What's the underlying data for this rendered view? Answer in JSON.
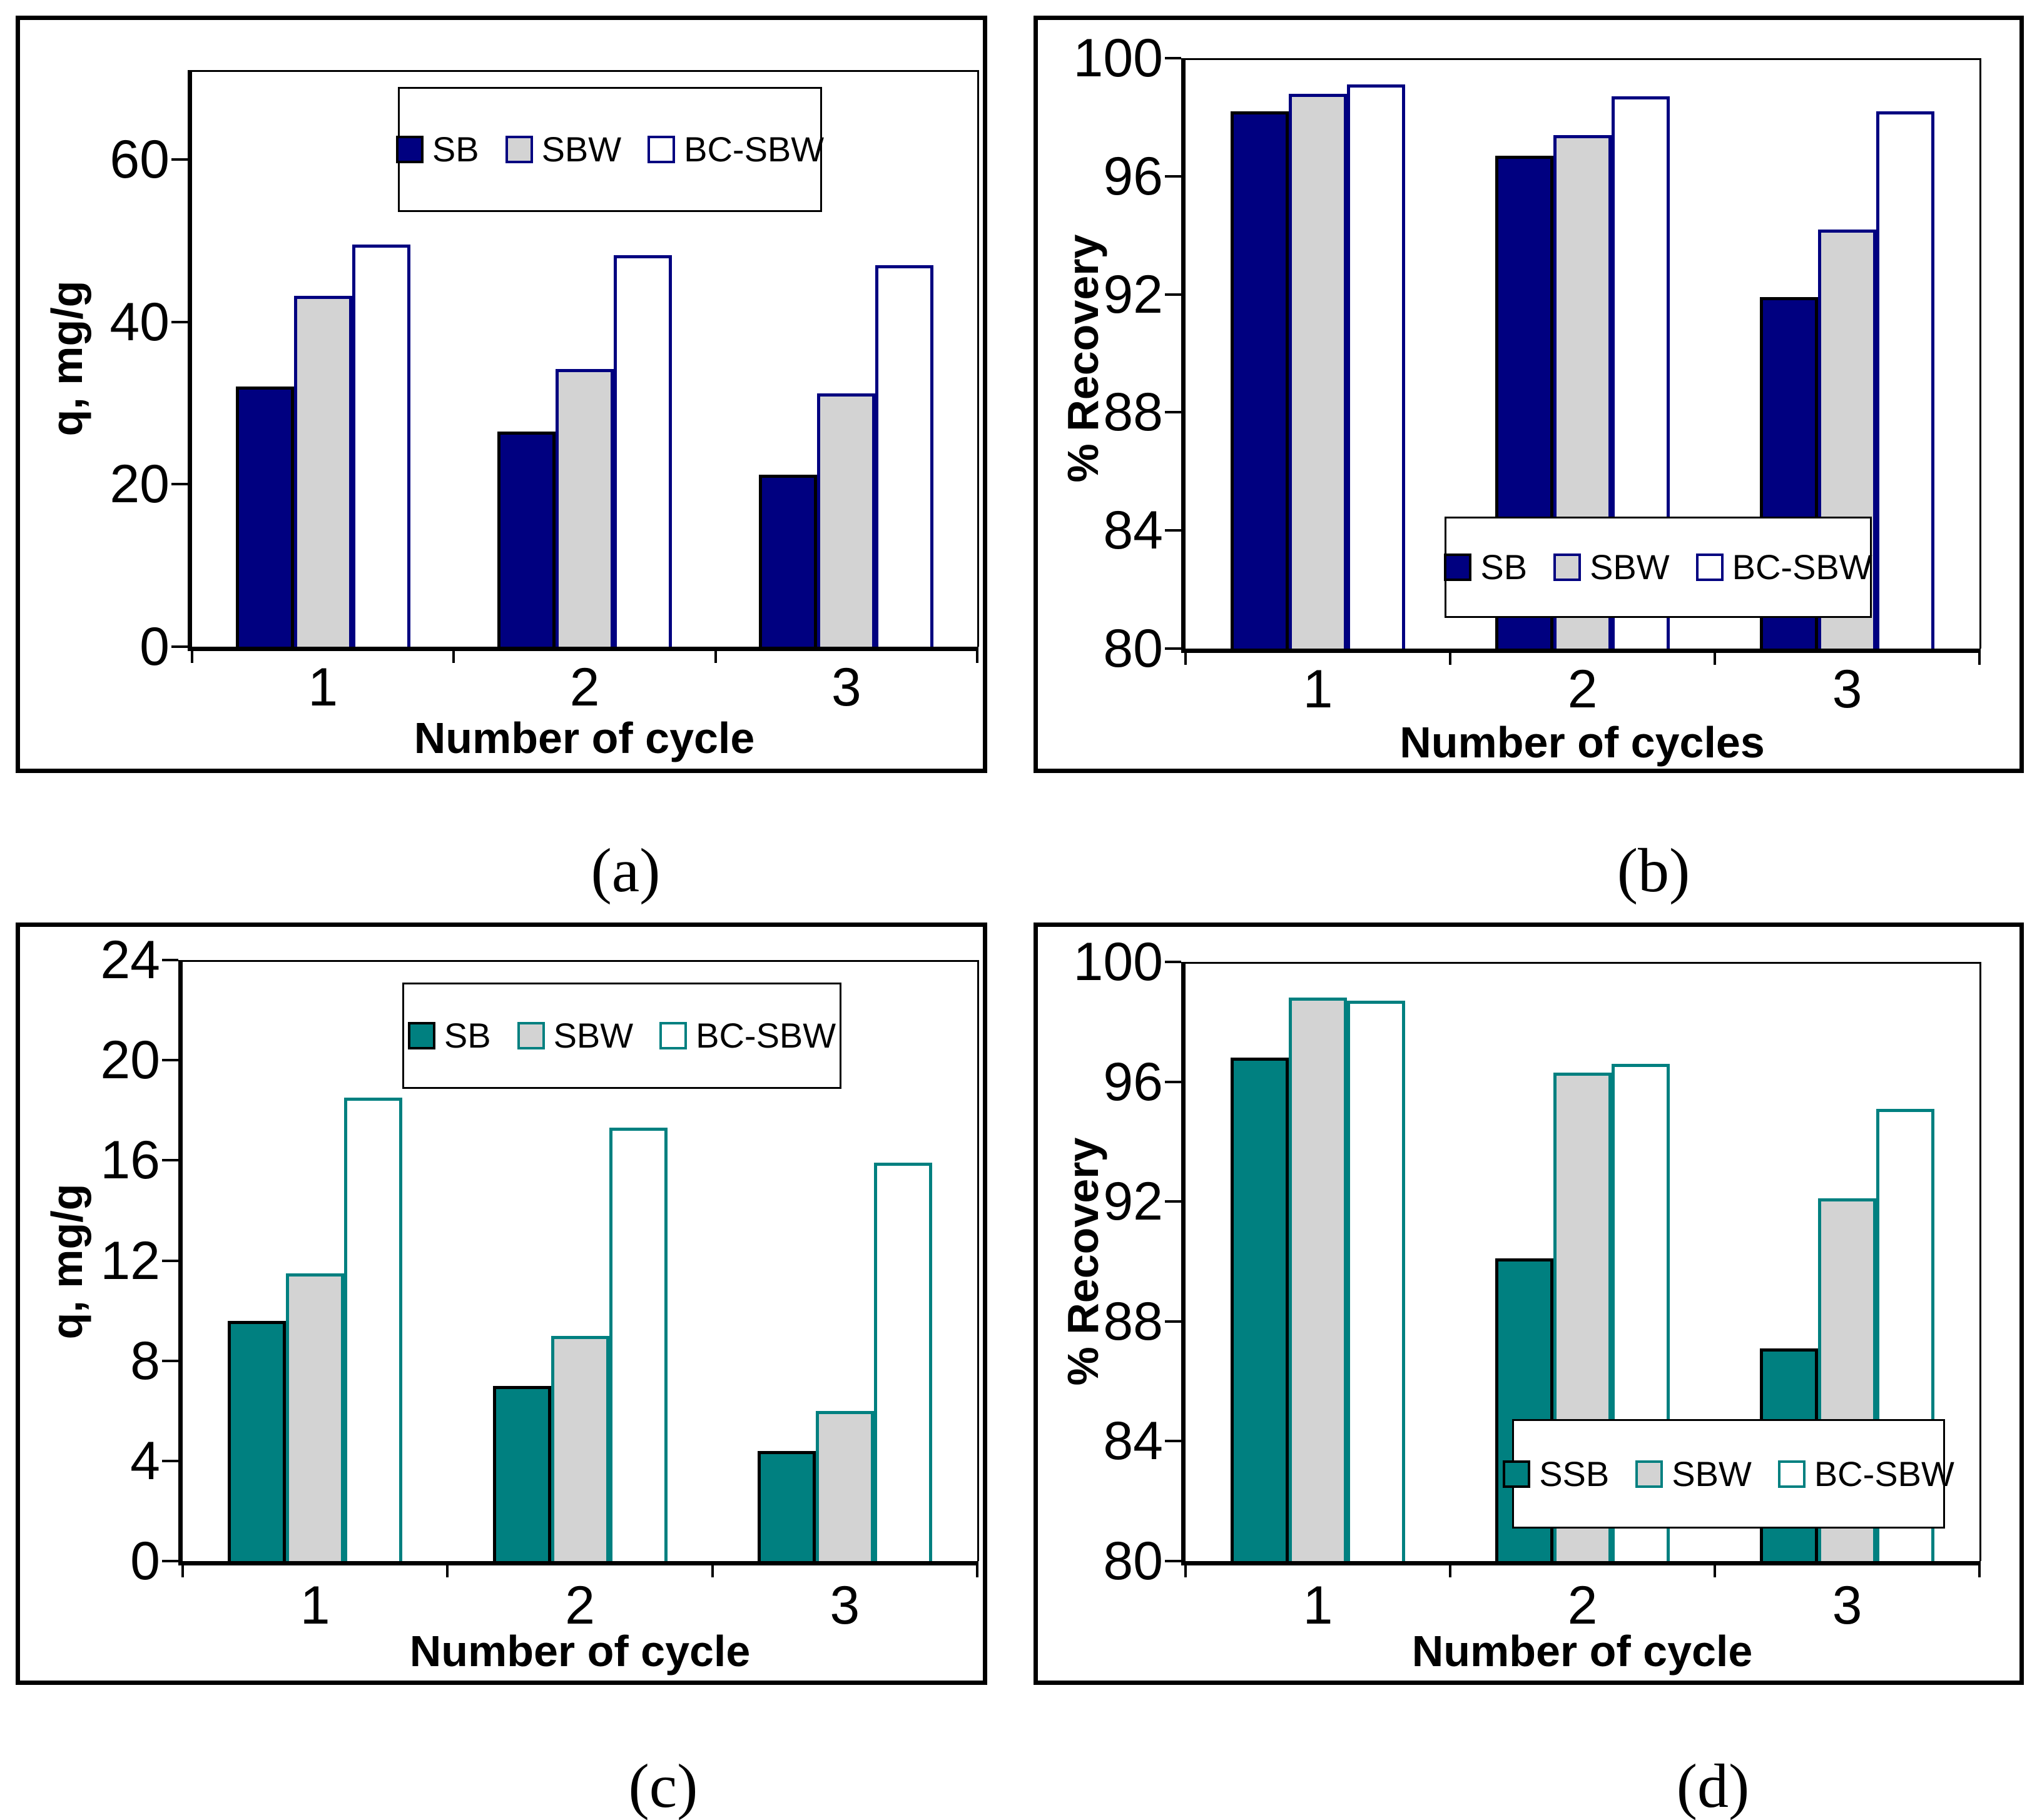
{
  "colors": {
    "navy": "#000080",
    "teal": "#008080",
    "bar_gray": "#d3d3d3",
    "bar_white": "#ffffff",
    "axis_black": "#000000"
  },
  "chart_data": [
    {
      "id": "a",
      "type": "bar",
      "panel_label": "(a)",
      "ylabel": "q, mg/g",
      "xlabel": "Number of cycle",
      "categories": [
        "1",
        "2",
        "3"
      ],
      "ylim": [
        0,
        71
      ],
      "yticks": [
        0,
        20,
        40,
        60
      ],
      "grid": false,
      "legend_position": "top-center",
      "series": [
        {
          "name": "SB",
          "fill": "#000080",
          "border": "#000000",
          "values": [
            32,
            26.5,
            21.2
          ]
        },
        {
          "name": "SBW",
          "fill": "#d3d3d3",
          "border": "#000080",
          "values": [
            43.2,
            34.2,
            31.2
          ]
        },
        {
          "name": "BC-SBW",
          "fill": "#ffffff",
          "border": "#000080",
          "values": [
            49.5,
            48.2,
            47
          ]
        }
      ]
    },
    {
      "id": "b",
      "type": "bar",
      "panel_label": "(b)",
      "ylabel": "% Recovery",
      "xlabel": "Number of cycles",
      "categories": [
        "1",
        "2",
        "3"
      ],
      "ylim": [
        80,
        100
      ],
      "yticks": [
        80,
        84,
        88,
        92,
        96,
        100
      ],
      "grid": false,
      "legend_position": "bottom-right-overlapping-bars",
      "series": [
        {
          "name": "SB",
          "fill": "#000080",
          "border": "#000000",
          "values": [
            98.2,
            96.7,
            91.9
          ]
        },
        {
          "name": "SBW",
          "fill": "#d3d3d3",
          "border": "#000080",
          "values": [
            98.8,
            97.4,
            94.2
          ]
        },
        {
          "name": "BC-SBW",
          "fill": "#ffffff",
          "border": "#000080",
          "values": [
            99.1,
            98.7,
            98.2
          ]
        }
      ]
    },
    {
      "id": "c",
      "type": "bar",
      "panel_label": "(c)",
      "ylabel": "q, mg/g",
      "xlabel": "Number of cycle",
      "categories": [
        "1",
        "2",
        "3"
      ],
      "ylim": [
        0,
        24
      ],
      "yticks": [
        0,
        4,
        8,
        12,
        16,
        20,
        24
      ],
      "grid": false,
      "legend_position": "top-center",
      "series": [
        {
          "name": "SB",
          "fill": "#008080",
          "border": "#000000",
          "values": [
            9.6,
            7,
            4.4
          ]
        },
        {
          "name": "SBW",
          "fill": "#d3d3d3",
          "border": "#008080",
          "values": [
            11.5,
            9,
            6
          ]
        },
        {
          "name": "BC-SBW",
          "fill": "#ffffff",
          "border": "#008080",
          "values": [
            18.5,
            17.3,
            15.9
          ]
        }
      ]
    },
    {
      "id": "d",
      "type": "bar",
      "panel_label": "(d)",
      "ylabel": "% Recovery",
      "xlabel": "Number of cycle",
      "categories": [
        "1",
        "2",
        "3"
      ],
      "ylim": [
        80,
        100
      ],
      "yticks": [
        80,
        84,
        88,
        92,
        96,
        100
      ],
      "grid": false,
      "legend_position": "bottom-right-overlapping-bars",
      "series": [
        {
          "name": "SSB",
          "fill": "#008080",
          "border": "#000000",
          "values": [
            96.8,
            90.1,
            87.1
          ]
        },
        {
          "name": "SBW",
          "fill": "#d3d3d3",
          "border": "#008080",
          "values": [
            98.8,
            96.3,
            92.1
          ]
        },
        {
          "name": "BC-SBW",
          "fill": "#ffffff",
          "border": "#008080",
          "values": [
            98.7,
            96.6,
            95.1
          ]
        }
      ]
    }
  ]
}
